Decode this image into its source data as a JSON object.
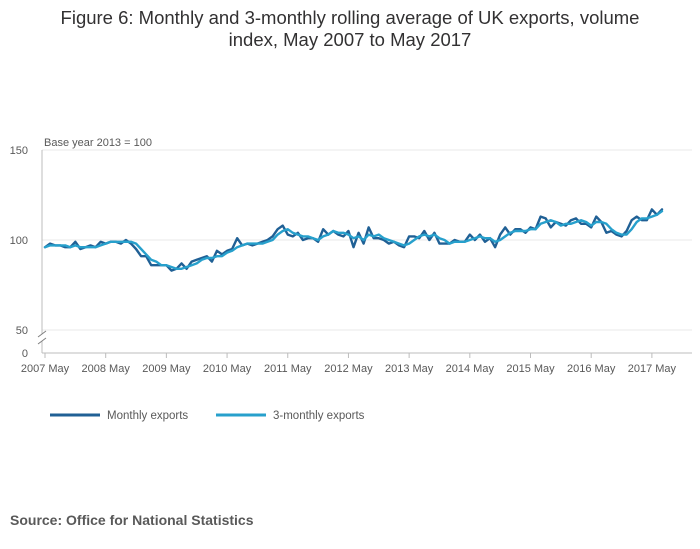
{
  "title_lines": [
    "Figure 6: Monthly and 3-monthly rolling average of UK exports, volume",
    "index, May 2007 to May 2017"
  ],
  "source": "Source: Office for National Statistics",
  "colors": {
    "monthly": "#206095",
    "rolling": "#27a0cc",
    "grid": "#e8e8e8",
    "axis": "#bcbcbc",
    "text": "#595959"
  },
  "chart_data": {
    "type": "line",
    "title": "Figure 6: Monthly and 3-monthly rolling average of UK exports, volume index, May 2007 to May 2017",
    "annotation": "Base year 2013 = 100",
    "xlabel": "",
    "ylabel": "",
    "y_axis_break": true,
    "yticks": [
      0,
      50,
      100,
      150
    ],
    "y_axis_labels": [
      "0",
      "50",
      "100",
      "150"
    ],
    "ylim_upper_segment": [
      50,
      150
    ],
    "x_ticks": [
      "2007 May",
      "2008 May",
      "2009 May",
      "2010 May",
      "2011 May",
      "2012 May",
      "2013 May",
      "2014 May",
      "2015 May",
      "2016 May",
      "2017 May"
    ],
    "legend": {
      "position": "bottom-left",
      "entries": [
        "Monthly exports",
        "3-monthly exports"
      ]
    },
    "series": [
      {
        "name": "Monthly exports",
        "values": [
          96,
          98,
          97,
          97,
          96,
          96,
          99,
          95,
          96,
          97,
          96,
          99,
          98,
          99,
          99,
          98,
          100,
          98,
          95,
          91,
          91,
          86,
          86,
          86,
          86,
          83,
          84,
          87,
          84,
          88,
          89,
          90,
          91,
          88,
          94,
          92,
          94,
          95,
          101,
          97,
          98,
          97,
          98,
          99,
          100,
          102,
          106,
          108,
          103,
          102,
          104,
          100,
          101,
          101,
          99,
          106,
          103,
          105,
          103,
          102,
          105,
          96,
          104,
          98,
          107,
          101,
          101,
          100,
          98,
          99,
          97,
          96,
          102,
          102,
          101,
          105,
          100,
          104,
          98,
          98,
          98,
          100,
          99,
          99,
          103,
          100,
          103,
          99,
          101,
          96,
          103,
          107,
          103,
          106,
          106,
          104,
          107,
          106,
          113,
          112,
          107,
          110,
          109,
          108,
          111,
          112,
          109,
          109,
          107,
          113,
          110,
          104,
          105,
          103,
          102,
          105,
          111,
          113,
          111,
          111,
          117,
          114,
          117
        ]
      },
      {
        "name": "3-monthly exports",
        "values": [
          96,
          97,
          97,
          97,
          97,
          96,
          97,
          96,
          96,
          96,
          96,
          97,
          98,
          99,
          99,
          99,
          99,
          99,
          98,
          95,
          92,
          89,
          88,
          86,
          86,
          85,
          84,
          84,
          85,
          86,
          87,
          89,
          90,
          90,
          91,
          91,
          93,
          94,
          96,
          97,
          98,
          98,
          98,
          98,
          99,
          100,
          103,
          105,
          106,
          104,
          103,
          102,
          102,
          101,
          100,
          102,
          103,
          105,
          104,
          104,
          103,
          101,
          102,
          100,
          103,
          102,
          103,
          101,
          100,
          99,
          98,
          97,
          98,
          100,
          102,
          103,
          102,
          103,
          101,
          100,
          98,
          99,
          99,
          99,
          100,
          101,
          102,
          101,
          101,
          99,
          100,
          102,
          104,
          105,
          105,
          105,
          106,
          106,
          109,
          110,
          111,
          110,
          108,
          109,
          109,
          110,
          111,
          110,
          108,
          110,
          110,
          109,
          106,
          104,
          103,
          103,
          106,
          110,
          112,
          112,
          113,
          114,
          116
        ]
      }
    ]
  }
}
